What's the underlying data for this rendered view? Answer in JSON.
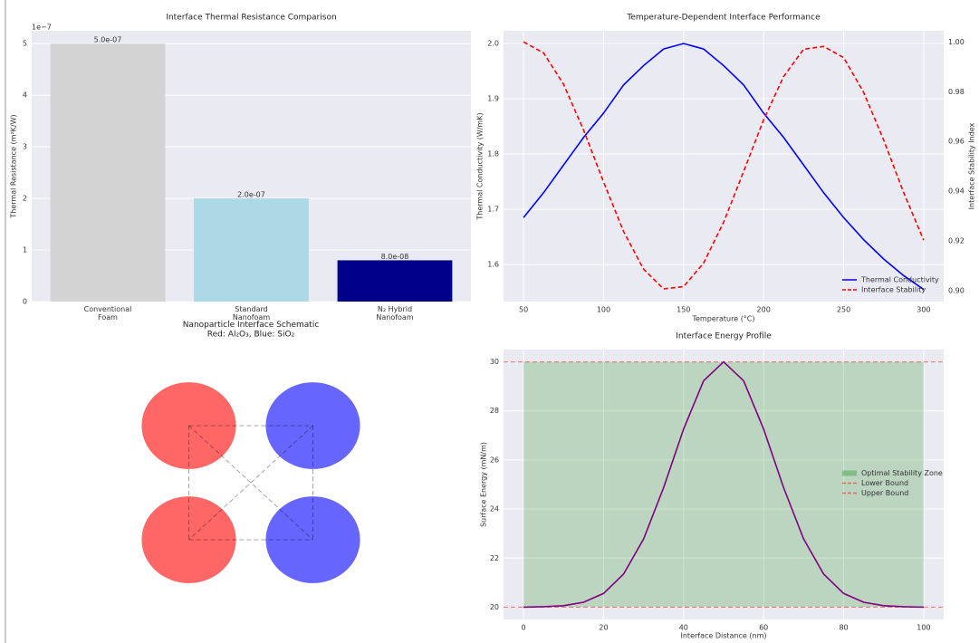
{
  "chart_data": [
    {
      "type": "bar",
      "title": "Interface Thermal Resistance Comparison",
      "ylabel": "Thermal Resistance (m²K/W)",
      "y_offset_label": "1e−7",
      "categories": [
        "Conventional\nFoam",
        "Standard\nNanofoam",
        "N₂ Hybrid\nNanofoam"
      ],
      "values": [
        5e-07,
        2e-07,
        8e-08
      ],
      "value_labels": [
        "5.0e-07",
        "2.0e-07",
        "8.0e-08"
      ],
      "colors": [
        "#d3d3d3",
        "#add8e6",
        "#00008b"
      ],
      "ylim": [
        0,
        5.25e-07
      ],
      "yticks": [
        0,
        {
          "value": 1e-07,
          "label": "1"
        },
        {
          "value": 2e-07,
          "label": "2"
        },
        {
          "value": 3e-07,
          "label": "3"
        },
        {
          "value": 4e-07,
          "label": "4"
        },
        {
          "value": 5e-07,
          "label": "5"
        }
      ],
      "grid": true
    },
    {
      "type": "dual_line",
      "title": "Temperature-Dependent Interface Performance",
      "xlabel": "Temperature (°C)",
      "ylabel": "Thermal Conductivity (W/mK)",
      "y2label": "Interface Stability Index",
      "x": [
        50,
        62.5,
        75,
        87.5,
        100,
        112.5,
        125,
        137.5,
        150,
        162.5,
        175,
        187.5,
        200,
        212.5,
        225,
        237.5,
        250,
        262.5,
        275,
        287.5,
        300
      ],
      "series": [
        {
          "name": "Thermal Conductivity",
          "color": "#0000ff",
          "values": [
            1.685,
            1.73,
            1.78,
            1.83,
            1.874,
            1.925,
            1.96,
            1.99,
            2.0,
            1.99,
            1.96,
            1.925,
            1.874,
            1.83,
            1.78,
            1.73,
            1.685,
            1.645,
            1.61,
            1.58,
            1.555
          ]
        },
        {
          "name": "Interface Stability",
          "color": "#ff0000",
          "dash": true,
          "axis": "y2",
          "values": [
            1.0,
            0.9956,
            0.983,
            0.9646,
            0.9437,
            0.9238,
            0.9086,
            0.9007,
            0.9016,
            0.9111,
            0.9275,
            0.9479,
            0.9687,
            0.9861,
            0.9971,
            0.9982,
            0.9937,
            0.9797,
            0.9606,
            0.9394,
            0.9203
          ]
        }
      ],
      "xlim": [
        37.5,
        312.5
      ],
      "xticks": [
        50,
        100,
        150,
        200,
        250,
        300
      ],
      "ylim": [
        1.533,
        2.023
      ],
      "yticks": [
        1.6,
        1.7,
        1.8,
        1.9,
        {
          "value": 2,
          "label": "2.0"
        }
      ],
      "y2lim": [
        0.8956,
        1.0045
      ],
      "y2ticks": [
        {
          "value": 0.9,
          "label": "0.90"
        },
        0.92,
        0.94,
        0.96,
        0.98,
        {
          "value": 1,
          "label": "1.00"
        }
      ],
      "legend": "lower right",
      "grid": true
    },
    {
      "type": "schematic",
      "title": "Nanoparticle Interface Schematic\nRed: Al₂O₃, Blue: SiO₂",
      "particles": [
        {
          "x": 0,
          "y": 1,
          "color": "#ff6666"
        },
        {
          "x": 1,
          "y": 1,
          "color": "#6666ff"
        },
        {
          "x": 0,
          "y": 0,
          "color": "#ff6666"
        },
        {
          "x": 1,
          "y": 0,
          "color": "#6666ff"
        }
      ],
      "radius": 0.38
    },
    {
      "type": "line",
      "title": "Interface Energy Profile",
      "xlabel": "Interface Distance (nm)",
      "ylabel": "Surface Energy (mN/m)",
      "x": [
        0,
        5,
        10,
        15,
        20,
        25,
        30,
        35,
        40,
        45,
        50,
        55,
        60,
        65,
        70,
        75,
        80,
        85,
        90,
        95,
        100
      ],
      "series": [
        {
          "color": "#800080",
          "values": [
            20.0,
            20.02,
            20.06,
            20.2,
            20.56,
            21.35,
            22.78,
            24.87,
            27.26,
            29.23,
            30,
            29.23,
            27.26,
            24.87,
            22.78,
            21.35,
            20.56,
            20.2,
            20.06,
            20.02,
            20.0
          ]
        }
      ],
      "span": {
        "name": "Optimal Stability Zone",
        "from": 20,
        "to": 30,
        "color": "#008000"
      },
      "hlines": [
        {
          "name": "Lower Bound",
          "value": 20,
          "color": "#ff0000"
        },
        {
          "name": "Upper Bound",
          "value": 30,
          "color": "#ff0000"
        }
      ],
      "xlim": [
        -5,
        105
      ],
      "xticks": [
        0,
        20,
        40,
        60,
        80,
        100
      ],
      "ylim": [
        19.5,
        30.5
      ],
      "yticks": [
        20,
        22,
        24,
        26,
        28,
        30
      ],
      "legend": "center right",
      "grid": true
    }
  ]
}
